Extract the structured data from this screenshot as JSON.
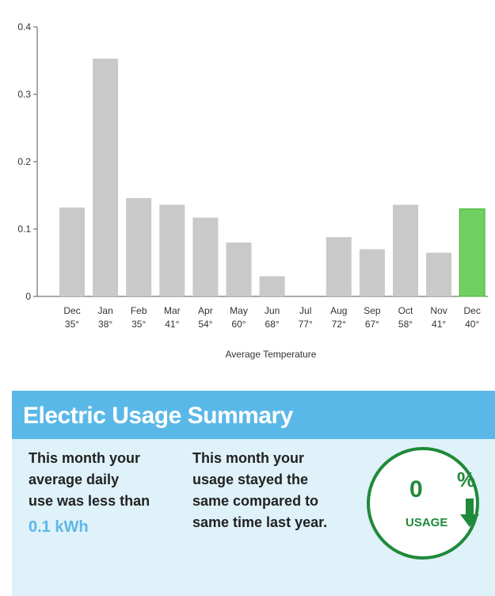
{
  "chart_data": {
    "type": "bar",
    "xlabel": "Average Temperature",
    "ylim": [
      0,
      0.4
    ],
    "yticks": [
      "0",
      "0.1",
      "0.2",
      "0.3",
      "0.4"
    ],
    "categories": [
      "Dec",
      "Jan",
      "Feb",
      "Mar",
      "Apr",
      "May",
      "Jun",
      "Jul",
      "Aug",
      "Sep",
      "Oct",
      "Nov",
      "Dec"
    ],
    "temperatures": [
      "35°",
      "38°",
      "35°",
      "41°",
      "54°",
      "60°",
      "68°",
      "77°",
      "72°",
      "67°",
      "58°",
      "41°",
      "40°"
    ],
    "values": [
      0.132,
      0.353,
      0.146,
      0.136,
      0.117,
      0.08,
      0.03,
      0,
      0.088,
      0.07,
      0.136,
      0.065,
      0.13
    ],
    "highlight_index": 12,
    "colors": {
      "bar": "#c9c9c9",
      "highlight": "#6fcf5f",
      "axis": "#555555"
    }
  },
  "summary": {
    "title": "Electric Usage Summary",
    "col1": {
      "line1": "This month your",
      "line2": "average daily",
      "line3": "use was less than",
      "value": "0.1 kWh"
    },
    "col2": {
      "line1": "This month your",
      "line2": "usage stayed the",
      "line3": "same compared to",
      "line4": "same time last year."
    },
    "badge": {
      "value": "0",
      "unit": "%",
      "label": "USAGE",
      "icon": "down-arrow-icon"
    },
    "colors": {
      "header": "#5ab8e8",
      "body": "#dff1f9",
      "green": "#1f8a3a"
    }
  }
}
